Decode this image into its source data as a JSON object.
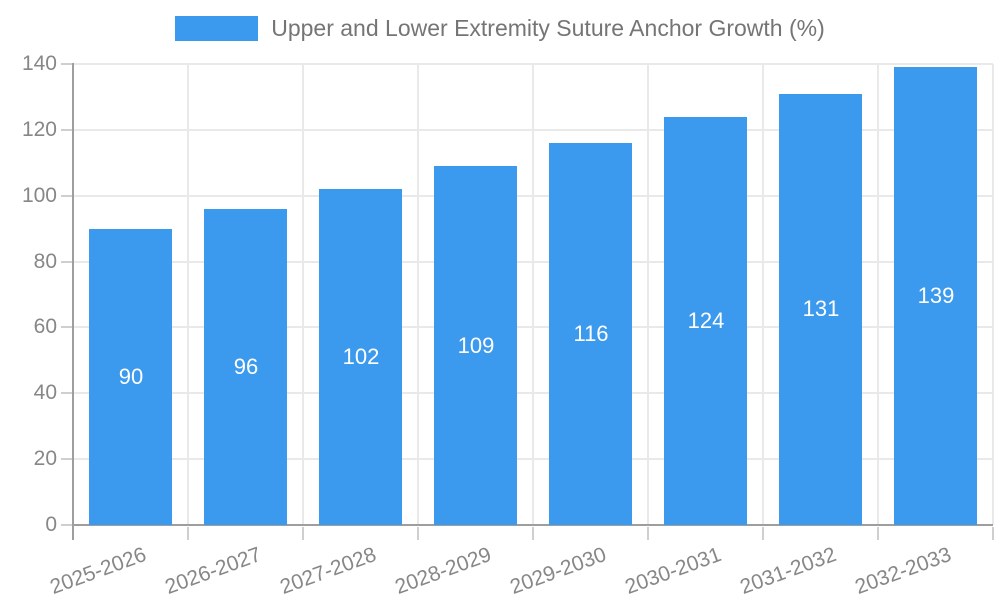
{
  "chart_data": {
    "type": "bar",
    "title": "Upper and Lower Extremity Suture Anchor Growth (%)",
    "categories": [
      "2025-2026",
      "2026-2027",
      "2027-2028",
      "2028-2029",
      "2029-2030",
      "2030-2031",
      "2031-2032",
      "2032-2033"
    ],
    "values": [
      90,
      96,
      102,
      109,
      116,
      124,
      131,
      139
    ],
    "xlabel": "",
    "ylabel": "",
    "ylim": [
      0,
      140
    ],
    "yticks": [
      0,
      20,
      40,
      60,
      80,
      100,
      120,
      140
    ],
    "grid": true,
    "legend_position": "top",
    "bar_labels_shown": true,
    "colors": {
      "bar": "#3b99ee",
      "bar_label": "#ffffff",
      "axis_text": "#878787",
      "legend_text": "#757575",
      "grid_line": "#e9e9e9",
      "axis_line": "#9e9e9e",
      "tick_mark": "#cfcfcf"
    }
  }
}
